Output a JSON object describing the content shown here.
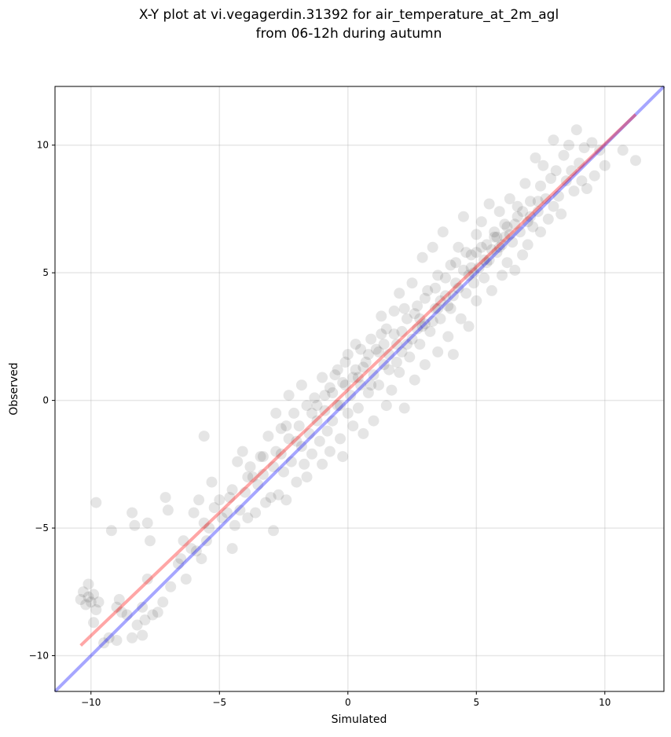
{
  "chart_data": {
    "type": "scatter",
    "title": [
      "X-Y plot at vi.vegagerdin.31392 for air_temperature_at_2m_agl",
      "from 06-12h during autumn"
    ],
    "xlabel": "Simulated",
    "ylabel": "Observed",
    "xlim": [
      -11.4,
      12.3
    ],
    "ylim": [
      -11.4,
      12.3
    ],
    "x_ticks": [
      -10,
      -5,
      0,
      5,
      10
    ],
    "y_ticks": [
      -10,
      -5,
      0,
      5,
      10
    ],
    "x_tick_labels": [
      "−10",
      "−5",
      "0",
      "5",
      "10"
    ],
    "y_tick_labels": [
      "−10",
      "−5",
      "0",
      "5",
      "10"
    ],
    "grid": true,
    "reference_lines": [
      {
        "color": "#0000ff",
        "opacity": 0.35,
        "x": [
          -11.4,
          12.3
        ],
        "y": [
          -11.4,
          12.3
        ]
      },
      {
        "color": "#ff0000",
        "opacity": 0.35,
        "x": [
          -10.4,
          11.2
        ],
        "y": [
          -9.6,
          11.2
        ]
      }
    ],
    "marker_color": "#000000",
    "marker_opacity": 0.1,
    "points": [
      [
        -10.4,
        -7.8
      ],
      [
        -10.3,
        -7.5
      ],
      [
        -10.2,
        -8.0
      ],
      [
        -10.1,
        -7.2
      ],
      [
        -10.0,
        -7.9
      ],
      [
        -9.9,
        -7.6
      ],
      [
        -9.8,
        -8.2
      ],
      [
        -9.7,
        -7.9
      ],
      [
        -10.1,
        -7.7
      ],
      [
        -9.9,
        -8.7
      ],
      [
        -9.8,
        -4.0
      ],
      [
        -9.2,
        -5.1
      ],
      [
        -9.5,
        -9.5
      ],
      [
        -9.3,
        -9.3
      ],
      [
        -9.0,
        -9.4
      ],
      [
        -9.0,
        -8.1
      ],
      [
        -8.9,
        -7.8
      ],
      [
        -8.8,
        -8.3
      ],
      [
        -8.6,
        -8.4
      ],
      [
        -8.4,
        -9.3
      ],
      [
        -8.4,
        -4.4
      ],
      [
        -8.3,
        -4.9
      ],
      [
        -8.2,
        -8.8
      ],
      [
        -8.0,
        -8.1
      ],
      [
        -8.0,
        -9.2
      ],
      [
        -7.9,
        -8.6
      ],
      [
        -7.8,
        -7.0
      ],
      [
        -7.8,
        -4.8
      ],
      [
        -7.7,
        -5.5
      ],
      [
        -7.6,
        -8.4
      ],
      [
        -7.4,
        -8.3
      ],
      [
        -7.2,
        -7.9
      ],
      [
        -7.1,
        -3.8
      ],
      [
        -7.0,
        -4.3
      ],
      [
        -6.9,
        -7.3
      ],
      [
        -6.6,
        -6.4
      ],
      [
        -6.5,
        -6.2
      ],
      [
        -6.4,
        -5.5
      ],
      [
        -6.3,
        -7.0
      ],
      [
        -6.1,
        -5.8
      ],
      [
        -6.0,
        -4.4
      ],
      [
        -5.9,
        -5.9
      ],
      [
        -5.8,
        -3.9
      ],
      [
        -5.7,
        -6.2
      ],
      [
        -5.6,
        -4.8
      ],
      [
        -5.5,
        -5.5
      ],
      [
        -5.4,
        -5.0
      ],
      [
        -5.3,
        -3.2
      ],
      [
        -5.2,
        -4.2
      ],
      [
        -5.0,
        -3.9
      ],
      [
        -5.6,
        -1.4
      ],
      [
        -4.9,
        -4.6
      ],
      [
        -4.7,
        -4.4
      ],
      [
        -4.6,
        -3.8
      ],
      [
        -4.5,
        -5.8
      ],
      [
        -4.4,
        -4.9
      ],
      [
        -4.3,
        -2.4
      ],
      [
        -4.2,
        -4.3
      ],
      [
        -4.1,
        -2.0
      ],
      [
        -4.0,
        -3.6
      ],
      [
        -3.9,
        -4.6
      ],
      [
        -3.8,
        -2.6
      ],
      [
        -3.7,
        -3.0
      ],
      [
        -3.6,
        -4.4
      ],
      [
        -3.5,
        -3.3
      ],
      [
        -3.4,
        -2.2
      ],
      [
        -3.3,
        -2.9
      ],
      [
        -3.2,
        -4.0
      ],
      [
        -3.1,
        -1.4
      ],
      [
        -3.0,
        -3.8
      ],
      [
        -2.9,
        -2.6
      ],
      [
        -2.9,
        -5.1
      ],
      [
        -2.8,
        -0.5
      ],
      [
        -2.8,
        -2.0
      ],
      [
        -2.7,
        -3.7
      ],
      [
        -2.6,
        -1.1
      ],
      [
        -2.5,
        -2.8
      ],
      [
        -2.4,
        -3.9
      ],
      [
        -2.3,
        -1.5
      ],
      [
        -2.3,
        0.2
      ],
      [
        -2.2,
        -2.4
      ],
      [
        -2.1,
        -0.5
      ],
      [
        -2.0,
        -3.2
      ],
      [
        -1.9,
        -1.0
      ],
      [
        -1.8,
        -1.8
      ],
      [
        -1.7,
        -2.5
      ],
      [
        -1.6,
        -0.2
      ],
      [
        -1.6,
        -3.0
      ],
      [
        -1.5,
        -1.3
      ],
      [
        -1.4,
        -2.1
      ],
      [
        -1.3,
        0.1
      ],
      [
        -1.2,
        -0.8
      ],
      [
        -1.1,
        -1.6
      ],
      [
        -1.0,
        -2.5
      ],
      [
        -1.0,
        0.9
      ],
      [
        -0.9,
        -0.4
      ],
      [
        -0.8,
        -1.2
      ],
      [
        -0.7,
        0.5
      ],
      [
        -0.7,
        -2.0
      ],
      [
        -0.6,
        -0.8
      ],
      [
        -0.5,
        1.0
      ],
      [
        -0.4,
        -0.2
      ],
      [
        -0.3,
        -1.5
      ],
      [
        -0.2,
        0.7
      ],
      [
        -0.2,
        -2.2
      ],
      [
        -0.1,
        1.5
      ],
      [
        0.0,
        -0.5
      ],
      [
        0.0,
        1.8
      ],
      [
        0.1,
        0.2
      ],
      [
        0.2,
        -1.0
      ],
      [
        0.3,
        1.2
      ],
      [
        0.4,
        -0.3
      ],
      [
        0.5,
        2.0
      ],
      [
        0.5,
        0.6
      ],
      [
        0.6,
        -1.3
      ],
      [
        0.7,
        1.5
      ],
      [
        0.8,
        0.3
      ],
      [
        0.9,
        2.4
      ],
      [
        1.0,
        1.0
      ],
      [
        1.0,
        -0.8
      ],
      [
        1.1,
        2.0
      ],
      [
        1.2,
        0.6
      ],
      [
        1.3,
        3.3
      ],
      [
        1.4,
        1.4
      ],
      [
        1.5,
        -0.2
      ],
      [
        1.5,
        2.8
      ],
      [
        1.6,
        1.8
      ],
      [
        1.7,
        0.4
      ],
      [
        1.8,
        3.5
      ],
      [
        1.9,
        2.2
      ],
      [
        2.0,
        1.1
      ],
      [
        2.0,
        4.2
      ],
      [
        2.1,
        2.7
      ],
      [
        2.2,
        -0.3
      ],
      [
        2.3,
        3.2
      ],
      [
        2.4,
        1.7
      ],
      [
        2.5,
        4.6
      ],
      [
        2.5,
        2.4
      ],
      [
        2.6,
        0.8
      ],
      [
        2.7,
        3.7
      ],
      [
        2.8,
        2.2
      ],
      [
        2.9,
        5.6
      ],
      [
        3.0,
        3.0
      ],
      [
        3.0,
        1.4
      ],
      [
        3.1,
        4.3
      ],
      [
        3.2,
        2.7
      ],
      [
        3.3,
        6.0
      ],
      [
        3.4,
        3.6
      ],
      [
        3.5,
        1.9
      ],
      [
        3.5,
        4.9
      ],
      [
        3.6,
        3.2
      ],
      [
        3.7,
        6.6
      ],
      [
        3.8,
        4.1
      ],
      [
        3.9,
        2.5
      ],
      [
        4.0,
        5.3
      ],
      [
        4.0,
        3.6
      ],
      [
        4.1,
        1.8
      ],
      [
        4.2,
        4.6
      ],
      [
        4.3,
        6.0
      ],
      [
        4.4,
        3.2
      ],
      [
        4.5,
        5.1
      ],
      [
        4.5,
        7.2
      ],
      [
        4.6,
        4.2
      ],
      [
        4.7,
        2.9
      ],
      [
        4.8,
        5.7
      ],
      [
        4.9,
        4.6
      ],
      [
        5.0,
        6.5
      ],
      [
        5.0,
        3.9
      ],
      [
        5.1,
        5.2
      ],
      [
        5.2,
        7.0
      ],
      [
        5.3,
        4.8
      ],
      [
        5.4,
        6.1
      ],
      [
        5.5,
        5.5
      ],
      [
        5.5,
        7.7
      ],
      [
        5.6,
        4.3
      ],
      [
        5.7,
        6.4
      ],
      [
        5.8,
        5.8
      ],
      [
        5.9,
        7.4
      ],
      [
        6.0,
        6.1
      ],
      [
        6.0,
        4.9
      ],
      [
        6.1,
        6.9
      ],
      [
        6.2,
        5.4
      ],
      [
        6.3,
        7.9
      ],
      [
        6.4,
        6.2
      ],
      [
        6.5,
        5.1
      ],
      [
        6.6,
        7.2
      ],
      [
        6.7,
        6.6
      ],
      [
        6.8,
        5.7
      ],
      [
        6.9,
        8.5
      ],
      [
        7.0,
        7.0
      ],
      [
        7.0,
        6.1
      ],
      [
        7.1,
        7.8
      ],
      [
        7.2,
        6.8
      ],
      [
        7.3,
        9.5
      ],
      [
        7.4,
        7.4
      ],
      [
        7.5,
        8.4
      ],
      [
        7.5,
        6.6
      ],
      [
        7.6,
        9.2
      ],
      [
        7.7,
        7.9
      ],
      [
        7.8,
        7.1
      ],
      [
        7.9,
        8.7
      ],
      [
        8.0,
        10.2
      ],
      [
        8.0,
        7.6
      ],
      [
        8.1,
        9.0
      ],
      [
        8.2,
        8.0
      ],
      [
        8.3,
        7.3
      ],
      [
        8.4,
        9.6
      ],
      [
        8.5,
        8.6
      ],
      [
        8.6,
        10.0
      ],
      [
        8.7,
        9.0
      ],
      [
        8.8,
        8.2
      ],
      [
        8.9,
        10.6
      ],
      [
        9.0,
        9.3
      ],
      [
        9.1,
        8.6
      ],
      [
        9.2,
        9.9
      ],
      [
        9.3,
        8.3
      ],
      [
        9.5,
        10.1
      ],
      [
        9.6,
        8.8
      ],
      [
        9.8,
        9.8
      ],
      [
        10.0,
        9.2
      ],
      [
        10.7,
        9.8
      ],
      [
        11.2,
        9.4
      ],
      [
        -1.8,
        0.6
      ],
      [
        -2.4,
        -1.0
      ],
      [
        -0.4,
        1.2
      ],
      [
        0.3,
        2.2
      ],
      [
        0.8,
        1.8
      ],
      [
        1.3,
        2.6
      ],
      [
        1.8,
        2.6
      ],
      [
        2.2,
        3.6
      ],
      [
        2.6,
        3.4
      ],
      [
        3.0,
        4.0
      ],
      [
        3.4,
        4.4
      ],
      [
        3.8,
        4.8
      ],
      [
        4.2,
        5.4
      ],
      [
        4.6,
        5.8
      ],
      [
        5.0,
        5.8
      ],
      [
        5.4,
        5.4
      ],
      [
        5.8,
        6.4
      ],
      [
        6.2,
        6.8
      ],
      [
        6.6,
        7.6
      ],
      [
        1.2,
        1.9
      ],
      [
        0.6,
        1.3
      ],
      [
        -0.1,
        0.6
      ],
      [
        -0.9,
        0.2
      ],
      [
        -1.4,
        -0.5
      ],
      [
        -2.0,
        -1.6
      ],
      [
        -2.6,
        -2.1
      ],
      [
        -3.3,
        -2.2
      ],
      [
        -3.9,
        -3.0
      ],
      [
        -4.5,
        -3.5
      ],
      [
        0.9,
        0.6
      ],
      [
        1.6,
        1.2
      ],
      [
        2.3,
        2.2
      ],
      [
        2.9,
        2.9
      ],
      [
        3.6,
        3.9
      ],
      [
        4.3,
        4.4
      ],
      [
        4.9,
        5.0
      ],
      [
        5.6,
        5.9
      ],
      [
        6.3,
        6.5
      ],
      [
        7.1,
        7.2
      ],
      [
        0.4,
        0.9
      ],
      [
        1.9,
        1.5
      ],
      [
        2.7,
        2.8
      ],
      [
        3.3,
        3.1
      ],
      [
        3.9,
        3.7
      ],
      [
        4.7,
        4.9
      ],
      [
        5.3,
        5.5
      ],
      [
        5.9,
        6.0
      ],
      [
        6.5,
        6.9
      ],
      [
        -0.6,
        0.3
      ],
      [
        -1.2,
        -0.2
      ],
      [
        -0.3,
        -0.2
      ],
      [
        0.2,
        0.9
      ],
      [
        1.4,
        2.2
      ],
      [
        2.1,
        1.9
      ],
      [
        2.8,
        3.2
      ],
      [
        3.5,
        3.6
      ],
      [
        4.1,
        4.1
      ],
      [
        4.8,
        5.2
      ],
      [
        5.2,
        6.0
      ],
      [
        5.7,
        6.6
      ],
      [
        6.1,
        6.4
      ],
      [
        6.8,
        7.4
      ],
      [
        7.4,
        7.8
      ]
    ]
  }
}
